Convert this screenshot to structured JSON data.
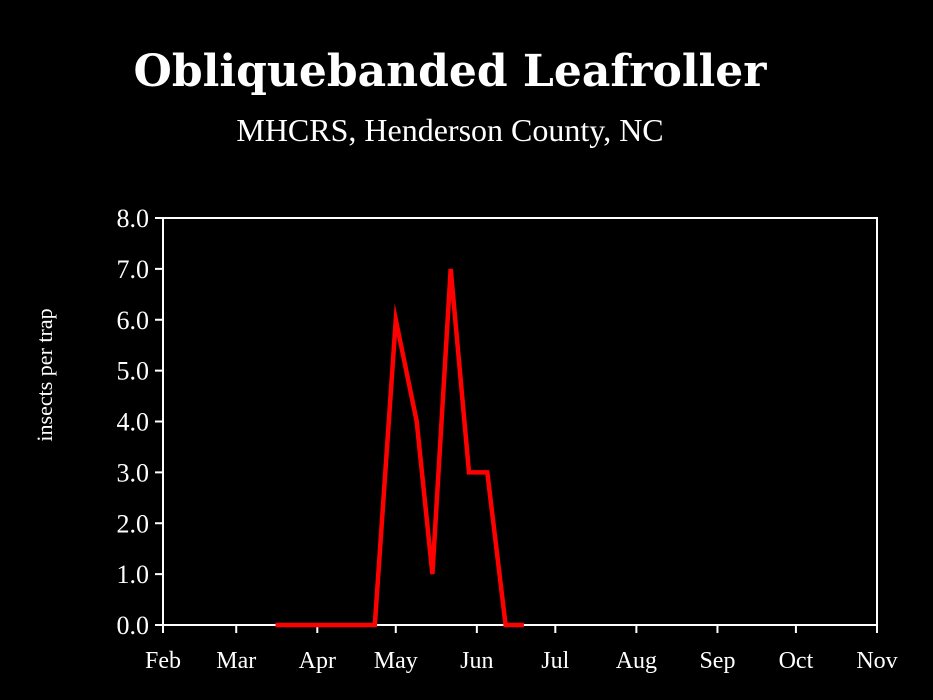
{
  "title": "Obliquebanded Leafroller",
  "subtitle": "MHCRS, Henderson County, NC",
  "colors": {
    "background": "#000000",
    "axis": "#ffffff",
    "series": "#ff0000",
    "text": "#ffffff"
  },
  "chart_data": {
    "type": "line",
    "title": "Obliquebanded Leafroller",
    "subtitle": "MHCRS, Henderson County, NC",
    "xlabel": "",
    "ylabel": "insects per trap",
    "x_ticks": [
      "Feb",
      "Mar",
      "Apr",
      "May",
      "Jun",
      "Jul",
      "Aug",
      "Sep",
      "Oct",
      "Nov"
    ],
    "y_ticks": [
      "0.0",
      "1.0",
      "2.0",
      "3.0",
      "4.0",
      "5.0",
      "6.0",
      "7.0",
      "8.0"
    ],
    "ylim": [
      0,
      8
    ],
    "xlim": [
      "Feb 1",
      "Nov 1"
    ],
    "grid": false,
    "series": [
      {
        "color": "#ff0000",
        "x": [
          "Mar 16",
          "Apr 1",
          "Apr 15",
          "Apr 23",
          "May 1",
          "May 9",
          "May 15",
          "May 22",
          "May 29",
          "Jun 5",
          "Jun 12",
          "Jun 19"
        ],
        "y": [
          0,
          0,
          0,
          0,
          6,
          4,
          1,
          7,
          3,
          3,
          0,
          0
        ]
      }
    ]
  }
}
